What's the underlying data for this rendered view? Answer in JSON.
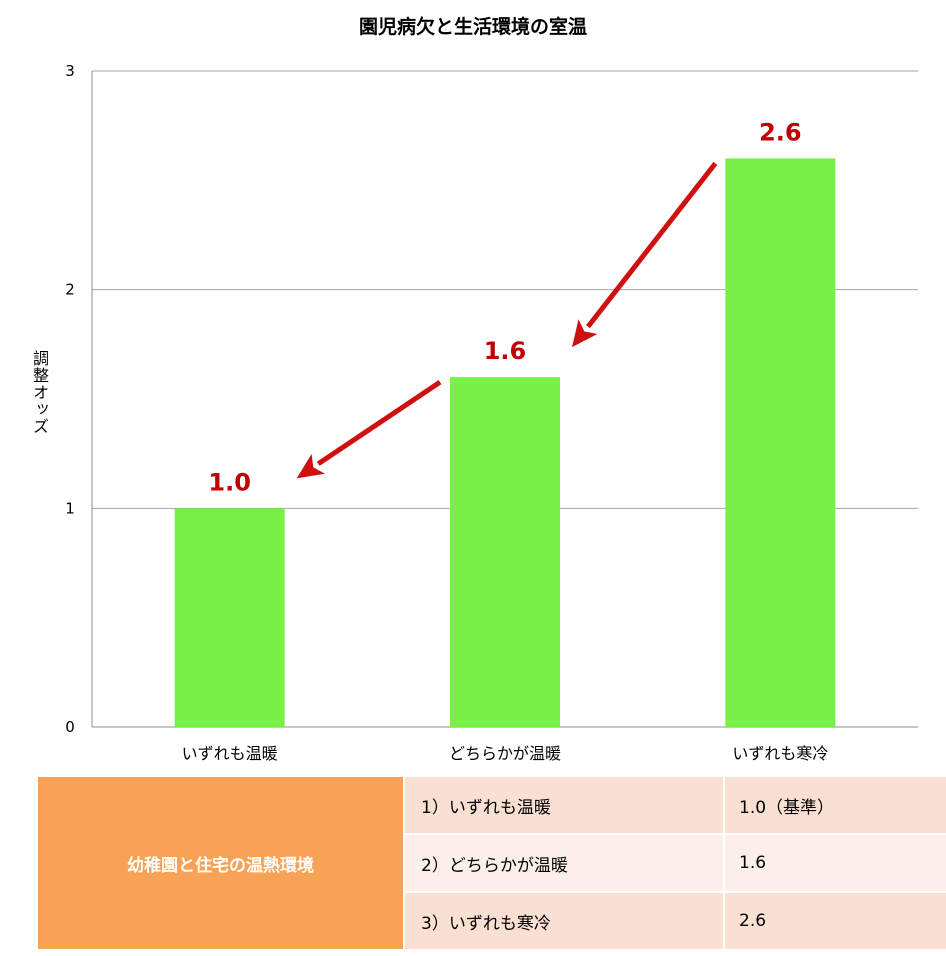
{
  "chart_data": {
    "type": "bar",
    "title": "園児病欠と生活環境の室温",
    "ylabel": "調整オッズ",
    "xlabel": "",
    "categories": [
      "いずれも温暖",
      "どちらかが温暖",
      "いずれも寒冷"
    ],
    "values": [
      1.0,
      1.6,
      2.6
    ],
    "data_labels": [
      "1.0",
      "1.6",
      "2.6"
    ],
    "ylim": [
      0,
      3
    ],
    "yticks": [
      0,
      1,
      2,
      3
    ],
    "grid": true,
    "bar_color": "#78f045",
    "label_color": "#c00000",
    "arrow_color": "#d01010",
    "arrows": [
      {
        "from": "いずれも寒冷",
        "to": "どちらかが温暖"
      },
      {
        "from": "どちらかが温暖",
        "to": "いずれも温暖"
      }
    ]
  },
  "legend_table": {
    "header": "幼稚園と住宅の温熱環境",
    "header_color": "#f7a254",
    "rows": [
      {
        "condition": "1）いずれも温暖",
        "value": "1.0（基準）"
      },
      {
        "condition": "2）どちらかが温暖",
        "value": "1.6"
      },
      {
        "condition": "3）いずれも寒冷",
        "value": "2.6"
      }
    ]
  }
}
